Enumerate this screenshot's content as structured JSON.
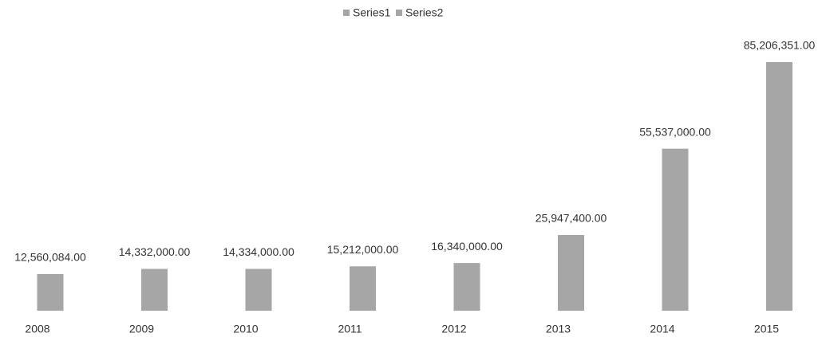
{
  "chart_data": {
    "type": "bar",
    "categories": [
      "2008",
      "2009",
      "2010",
      "2011",
      "2012",
      "2013",
      "2014",
      "2015"
    ],
    "series": [
      {
        "name": "Series1",
        "color": "#a6a6a6",
        "values": [
          null,
          null,
          null,
          null,
          null,
          null,
          null,
          null
        ]
      },
      {
        "name": "Series2",
        "color": "#a6a6a6",
        "values": [
          12560084,
          14332000,
          14334000,
          15212000,
          16340000,
          25947400,
          55537000,
          85206351
        ],
        "value_labels": [
          "12,560,084.00",
          "14,332,000.00",
          "14,334,000.00",
          "15,212,000.00",
          "16,340,000.00",
          "25,947,400.00",
          "55,537,000.00",
          "85,206,351.00"
        ]
      }
    ],
    "legend": "top"
  }
}
